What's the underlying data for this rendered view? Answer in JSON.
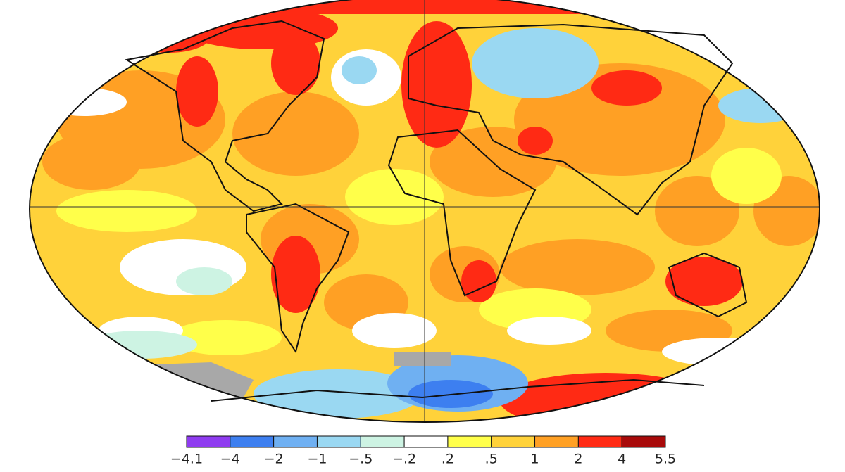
{
  "colorbar": {
    "labels": [
      "−4.1",
      "−4",
      "−2",
      "−1",
      "−.5",
      "−.2",
      ".2",
      ".5",
      "1",
      "2",
      "4",
      "5.5"
    ],
    "colors": [
      "#8f3cf0",
      "#3d7ff0",
      "#6fb0f2",
      "#9ad8f2",
      "#cdf3e3",
      "#ffffff",
      "#ffff4a",
      "#ffd23a",
      "#ffa024",
      "#ff2a14",
      "#a80a0a"
    ]
  }
}
